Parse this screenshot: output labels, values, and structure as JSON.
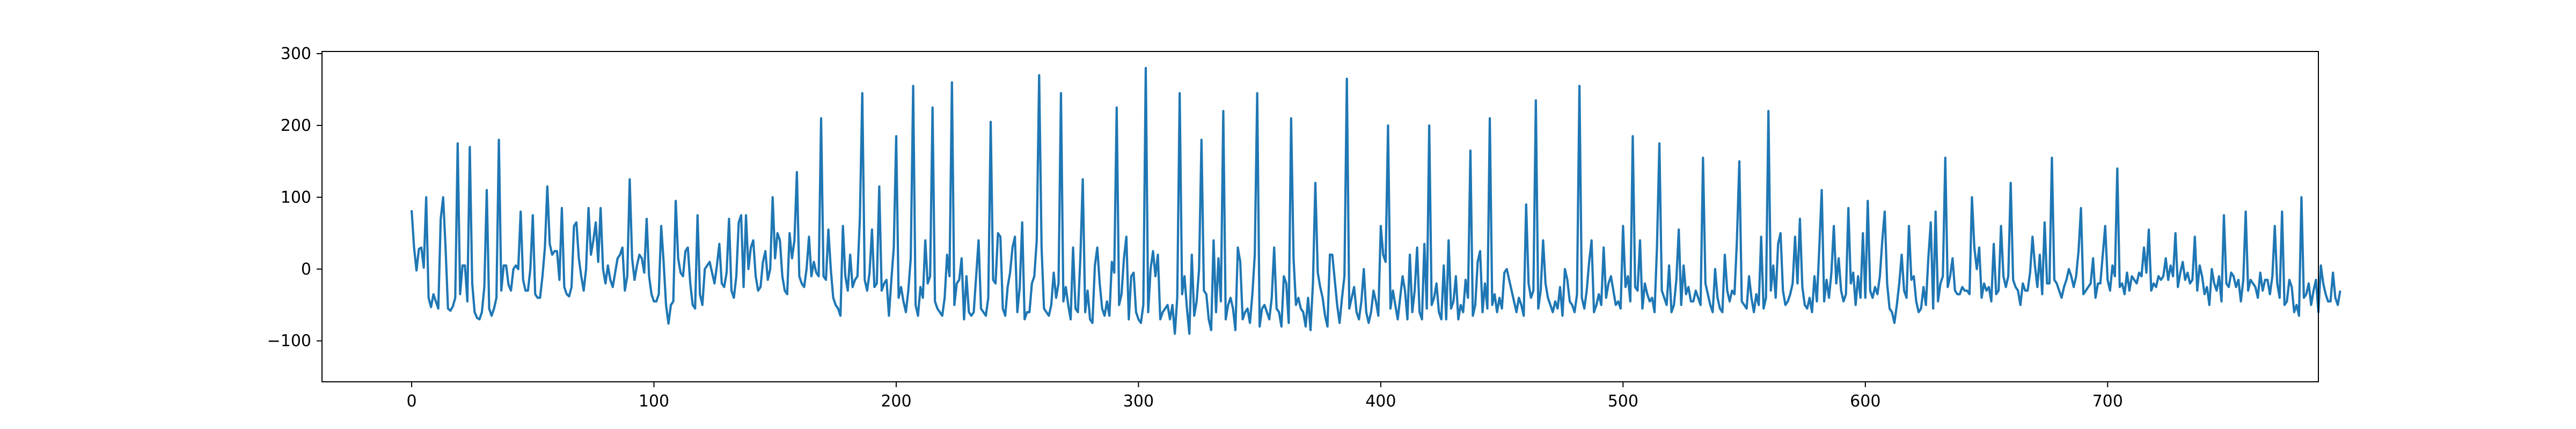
{
  "chart_data": {
    "type": "line",
    "title": "",
    "xlabel": "",
    "ylabel": "",
    "xlim": [
      -37,
      787
    ],
    "ylim": [
      -157,
      303
    ],
    "x_ticks": [
      0,
      100,
      200,
      300,
      400,
      500,
      600,
      700
    ],
    "y_ticks": [
      -100,
      0,
      100,
      200,
      300
    ],
    "x_tick_labels": [
      "0",
      "100",
      "200",
      "300",
      "400",
      "500",
      "600",
      "700"
    ],
    "y_tick_labels": [
      "−100",
      "0",
      "100",
      "200",
      "300"
    ],
    "grid": false,
    "legend": "none",
    "line_color": "#1f77b4",
    "series": [
      {
        "x_start": 0,
        "x_step": 1,
        "values": [
          82,
          30,
          -2,
          28,
          30,
          2,
          100,
          -40,
          -53,
          -35,
          -45,
          -55,
          70,
          100,
          30,
          -55,
          -58,
          -52,
          -40,
          175,
          -35,
          5,
          5,
          -45,
          170,
          -20,
          -60,
          -68,
          -70,
          -60,
          -25,
          110,
          -55,
          -65,
          -55,
          -40,
          180,
          -30,
          5,
          5,
          -22,
          -30,
          0,
          5,
          0,
          80,
          -15,
          -30,
          -30,
          0,
          75,
          -35,
          -40,
          -40,
          -10,
          30,
          115,
          35,
          20,
          25,
          25,
          -15,
          85,
          -25,
          -35,
          -38,
          -25,
          60,
          65,
          15,
          -10,
          -30,
          0,
          85,
          20,
          40,
          65,
          10,
          85,
          0,
          -20,
          5,
          -15,
          -25,
          -5,
          15,
          20,
          30,
          -30,
          -10,
          125,
          15,
          -15,
          5,
          20,
          15,
          -5,
          70,
          -10,
          -35,
          -45,
          -45,
          -35,
          60,
          10,
          -50,
          -76,
          -50,
          -45,
          95,
          15,
          -5,
          -10,
          25,
          30,
          -20,
          -50,
          -55,
          75,
          -35,
          -50,
          0,
          5,
          10,
          -5,
          -20,
          5,
          35,
          -20,
          -25,
          -5,
          70,
          -30,
          -40,
          -10,
          65,
          75,
          -25,
          75,
          0,
          30,
          40,
          -10,
          -30,
          -25,
          10,
          25,
          -15,
          0,
          100,
          15,
          50,
          40,
          -10,
          -30,
          -35,
          50,
          15,
          40,
          135,
          -10,
          -20,
          -25,
          0,
          45,
          -10,
          10,
          -5,
          -10,
          210,
          -10,
          -15,
          55,
          0,
          -40,
          -50,
          -55,
          -65,
          60,
          -10,
          -30,
          20,
          -25,
          -15,
          -10,
          70,
          245,
          -15,
          -30,
          -5,
          55,
          -25,
          -20,
          115,
          -30,
          -20,
          -15,
          -65,
          -15,
          30,
          185,
          -40,
          -25,
          -45,
          -60,
          -30,
          15,
          255,
          -50,
          -65,
          -25,
          -40,
          40,
          -20,
          -10,
          225,
          -45,
          -55,
          -60,
          -65,
          -40,
          20,
          -10,
          260,
          -50,
          -20,
          -15,
          15,
          -70,
          -10,
          -60,
          -65,
          -60,
          -10,
          40,
          -55,
          -60,
          -65,
          -40,
          205,
          -15,
          -20,
          50,
          45,
          -55,
          -65,
          -25,
          -5,
          30,
          45,
          -60,
          -25,
          65,
          -70,
          -60,
          -60,
          -20,
          -10,
          40,
          270,
          30,
          -55,
          -60,
          -65,
          -50,
          -5,
          -40,
          -20,
          245,
          -45,
          -25,
          -50,
          -70,
          30,
          -55,
          -60,
          15,
          125,
          -60,
          -30,
          -70,
          -75,
          5,
          30,
          -20,
          -55,
          -65,
          -45,
          -65,
          10,
          -5,
          225,
          -50,
          -35,
          15,
          45,
          -70,
          -10,
          -5,
          -60,
          -70,
          -75,
          -50,
          280,
          -60,
          0,
          25,
          -10,
          20,
          -70,
          -60,
          -55,
          -50,
          -70,
          -50,
          -90,
          -40,
          245,
          -35,
          -10,
          -55,
          -90,
          20,
          -65,
          -45,
          0,
          180,
          -30,
          -35,
          -70,
          -85,
          40,
          -60,
          15,
          -45,
          220,
          -70,
          -50,
          -40,
          -55,
          -85,
          30,
          10,
          -70,
          -60,
          -55,
          -75,
          -35,
          20,
          245,
          -80,
          -55,
          -50,
          -60,
          -70,
          -40,
          30,
          -55,
          -60,
          -80,
          -10,
          -20,
          -75,
          210,
          15,
          -50,
          -40,
          -55,
          -60,
          -80,
          -40,
          -85,
          -20,
          120,
          -5,
          -25,
          -40,
          -65,
          -80,
          20,
          20,
          -15,
          -50,
          -75,
          -40,
          -10,
          265,
          -55,
          -40,
          -25,
          -60,
          -70,
          -45,
          0,
          -60,
          -75,
          -60,
          -30,
          -45,
          -65,
          60,
          20,
          10,
          200,
          -55,
          -30,
          -50,
          -70,
          -40,
          -10,
          -30,
          -70,
          20,
          -60,
          -30,
          30,
          -60,
          -70,
          35,
          -55,
          200,
          -50,
          -40,
          -20,
          -60,
          -70,
          5,
          -70,
          40,
          -55,
          -45,
          -10,
          -70,
          -50,
          -60,
          -15,
          -40,
          165,
          -65,
          -50,
          10,
          25,
          -60,
          -20,
          -55,
          210,
          -50,
          -35,
          -60,
          -40,
          -55,
          -5,
          0,
          -15,
          -30,
          -45,
          -60,
          -40,
          -50,
          -65,
          90,
          -20,
          -40,
          -30,
          235,
          -55,
          -30,
          40,
          -20,
          -40,
          -50,
          -60,
          -45,
          -55,
          -25,
          -65,
          0,
          -15,
          -45,
          -50,
          -60,
          -35,
          255,
          -40,
          -55,
          -30,
          10,
          40,
          -60,
          -50,
          -35,
          -50,
          30,
          -40,
          -20,
          -10,
          -30,
          -50,
          -45,
          -55,
          60,
          -25,
          -10,
          -45,
          185,
          -25,
          -30,
          40,
          -55,
          -20,
          -35,
          -45,
          -40,
          -60,
          30,
          175,
          -30,
          -40,
          -50,
          5,
          -60,
          -50,
          -15,
          55,
          -50,
          5,
          -35,
          -25,
          -45,
          -45,
          -30,
          -40,
          -50,
          155,
          -20,
          -35,
          -50,
          -60,
          0,
          -40,
          -55,
          -60,
          20,
          -30,
          -45,
          -30,
          -35,
          40,
          150,
          -45,
          -50,
          -55,
          -10,
          -40,
          -60,
          -35,
          -50,
          45,
          -55,
          -40,
          220,
          -30,
          5,
          -40,
          35,
          50,
          -30,
          -50,
          -45,
          -35,
          -20,
          45,
          -20,
          70,
          -25,
          -50,
          -55,
          -40,
          -60,
          -10,
          -45,
          30,
          110,
          -45,
          -15,
          -40,
          -5,
          60,
          -20,
          15,
          -30,
          -45,
          -35,
          85,
          -20,
          -5,
          -50,
          -10,
          -40,
          50,
          -40,
          95,
          -30,
          -40,
          -25,
          -35,
          -10,
          40,
          80,
          -20,
          -55,
          -60,
          -75,
          -50,
          -20,
          20,
          -30,
          -40,
          60,
          -15,
          -10,
          -45,
          -60,
          -55,
          -25,
          -50,
          15,
          65,
          -55,
          80,
          -45,
          -20,
          -10,
          155,
          -25,
          -10,
          15,
          -30,
          -35,
          -35,
          -25,
          -30,
          -30,
          -35,
          100,
          30,
          0,
          30,
          -40,
          -20,
          -30,
          -25,
          -45,
          35,
          -35,
          -30,
          60,
          -10,
          -25,
          -10,
          120,
          -15,
          -25,
          -30,
          -50,
          -20,
          -30,
          -30,
          -5,
          45,
          5,
          -25,
          20,
          -35,
          65,
          -20,
          -20,
          155,
          -15,
          -20,
          -30,
          -40,
          -25,
          -15,
          0,
          -10,
          -25,
          -10,
          25,
          85,
          -35,
          -30,
          -25,
          -20,
          15,
          -40,
          -20,
          -20,
          20,
          60,
          -15,
          -30,
          5,
          -10,
          140,
          -25,
          -20,
          -35,
          -5,
          -30,
          -10,
          -15,
          -20,
          -5,
          -10,
          30,
          -5,
          55,
          -30,
          -20,
          -25,
          -10,
          -15,
          -10,
          15,
          -15,
          5,
          -10,
          50,
          -25,
          -5,
          10,
          -15,
          -5,
          -20,
          -15,
          45,
          -30,
          5,
          -10,
          -35,
          -25,
          -50,
          0,
          -20,
          -30,
          -10,
          -45,
          75,
          -20,
          -25,
          -5,
          -10,
          -25,
          -15,
          -45,
          -15,
          80,
          -30,
          -15,
          -20,
          -25,
          -40,
          -5,
          -30,
          -15,
          -15,
          -35,
          -10,
          60,
          -20,
          -40,
          80,
          -50,
          -45,
          -15,
          -25,
          -60,
          -50,
          -65,
          100,
          -40,
          -35,
          -20,
          -50,
          -30,
          -15,
          -60,
          5,
          -20,
          -35,
          -45,
          -45,
          -5,
          -40,
          -50,
          -30
        ]
      }
    ]
  }
}
